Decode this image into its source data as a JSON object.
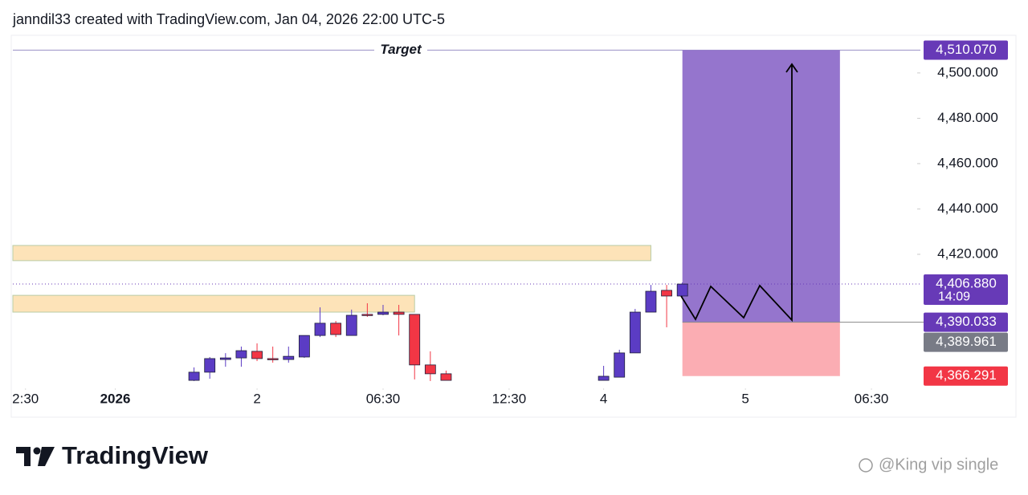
{
  "header": "janndil33 created with TradingView.com, Jan 04, 2026 22:00 UTC-5",
  "brand": "TradingView",
  "watermark": "@King vip single",
  "chart_data": {
    "type": "candlestick",
    "up_color": "#5b3cc4",
    "down_color": "#f23645",
    "x": [
      0,
      1,
      2,
      3,
      4,
      5,
      6,
      7,
      8,
      9,
      10,
      11,
      12,
      13,
      14,
      15,
      16,
      26,
      27,
      28,
      29,
      30,
      31
    ],
    "open": [
      4364.4,
      4368.0,
      4373.6,
      4374.3,
      4377.2,
      4374.0,
      4373.6,
      4374.7,
      4384.2,
      4389.6,
      4384.2,
      4393.5,
      4393.5,
      4394.5,
      4393.5,
      4371.2,
      4367.3,
      4364.4,
      4365.8,
      4376.5,
      4394.5,
      4404.1,
      4401.6
    ],
    "high": [
      4370.1,
      4374.7,
      4376.4,
      4379.3,
      4380.7,
      4379.3,
      4379.3,
      4384.2,
      4396.6,
      4390.6,
      4395.6,
      4398.4,
      4397.7,
      4397.7,
      4393.5,
      4377.2,
      4368.7,
      4370.8,
      4377.9,
      4395.9,
      4406.5,
      4406.5,
      4407.6
    ],
    "low": [
      4364.1,
      4365.1,
      4370.4,
      4370.4,
      4372.9,
      4372.2,
      4372.2,
      4374.3,
      4383.5,
      4383.5,
      4384.2,
      4392.4,
      4393.1,
      4384.2,
      4364.8,
      4364.1,
      4364.4,
      4364.4,
      4365.8,
      4376.5,
      4394.5,
      4387.8,
      4401.2
    ],
    "close": [
      4368.0,
      4374.0,
      4374.3,
      4377.5,
      4374.0,
      4373.6,
      4375.0,
      4384.2,
      4389.6,
      4384.6,
      4393.1,
      4393.1,
      4394.5,
      4393.5,
      4371.2,
      4367.3,
      4364.4,
      4366.2,
      4376.5,
      4394.5,
      4403.7,
      4401.6,
      4406.88
    ],
    "xlim": [
      -11.5,
      45.8
    ],
    "xticks": [
      {
        "value": -10.7,
        "label": "2:30"
      },
      {
        "value": -5,
        "label": "2026"
      },
      {
        "value": 4,
        "label": "2"
      },
      {
        "value": 12,
        "label": "06:30"
      },
      {
        "value": 20,
        "label": "12:30"
      },
      {
        "value": 26,
        "label": "4"
      },
      {
        "value": 35,
        "label": "5"
      },
      {
        "value": 43,
        "label": "06:30"
      }
    ],
    "ylim": [
      4361.6,
      4516.6
    ],
    "yticks": [
      {
        "value": 4420,
        "label": "4,420.000"
      },
      {
        "value": 4440,
        "label": "4,440.000"
      },
      {
        "value": 4460,
        "label": "4,460.000"
      },
      {
        "value": 4480,
        "label": "4,480.000"
      },
      {
        "value": 4500,
        "label": "4,500.000"
      }
    ],
    "zones": [
      {
        "top": 4423.9,
        "bottom": 4417.2,
        "x_end": 29,
        "color": "#fde3b8"
      },
      {
        "top": 4401.9,
        "bottom": 4394.5,
        "x_end": 14,
        "color": "#fde3b8"
      }
    ],
    "position": {
      "x_start": 31,
      "x_end": 41,
      "target_text": "Target",
      "target": {
        "value": 4510.07,
        "label": "4,510.070"
      },
      "entry": {
        "value": 4390.033,
        "label": "4,390.033"
      },
      "stop": {
        "value": 4366.291,
        "label": "4,366.291"
      },
      "profit_color": "#9575cd",
      "loss_color": "#fbadb3",
      "label_color": "#673ab7",
      "stop_label_color": "#f23645"
    },
    "last_price": {
      "value": 4406.88,
      "label": "4,406.880",
      "countdown": "14:09",
      "color": "#673ab7"
    },
    "other_price": {
      "value": 4389.961,
      "label": "4,389.961",
      "color": "#787b86"
    }
  }
}
